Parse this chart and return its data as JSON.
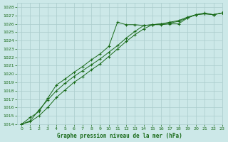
{
  "title": "Graphe pression niveau de la mer (hPa)",
  "bg_color": "#cce8e8",
  "grid_color": "#aacccc",
  "line_color": "#1a6b1a",
  "xlim": [
    -0.5,
    23
  ],
  "ylim": [
    1014,
    1028.5
  ],
  "xticks": [
    0,
    1,
    2,
    3,
    4,
    5,
    6,
    7,
    8,
    9,
    10,
    11,
    12,
    13,
    14,
    15,
    16,
    17,
    18,
    19,
    20,
    21,
    22,
    23
  ],
  "yticks": [
    1014,
    1015,
    1016,
    1017,
    1018,
    1019,
    1020,
    1021,
    1022,
    1023,
    1024,
    1025,
    1026,
    1027,
    1028
  ],
  "series1_x": [
    0,
    1,
    2,
    3,
    4,
    5,
    6,
    7,
    8,
    9,
    10,
    11,
    12,
    13,
    14,
    15,
    16,
    17,
    18,
    19,
    20,
    21,
    22,
    23
  ],
  "series1_y": [
    1014.0,
    1014.8,
    1015.5,
    1017.1,
    1018.7,
    1019.4,
    1020.2,
    1020.9,
    1021.7,
    1022.4,
    1023.3,
    1026.2,
    1025.9,
    1025.9,
    1025.8,
    1025.9,
    1025.9,
    1026.0,
    1026.0,
    1026.7,
    1027.1,
    1027.3,
    1027.1,
    1027.3
  ],
  "series2_x": [
    0,
    1,
    2,
    3,
    4,
    5,
    6,
    7,
    8,
    9,
    10,
    11,
    12,
    13,
    14,
    15,
    16,
    17,
    18,
    19,
    20,
    21,
    22,
    23
  ],
  "series2_y": [
    1014.0,
    1014.4,
    1015.7,
    1016.9,
    1018.0,
    1018.9,
    1019.7,
    1020.4,
    1021.1,
    1021.8,
    1022.6,
    1023.4,
    1024.3,
    1025.1,
    1025.8,
    1025.9,
    1026.0,
    1026.1,
    1026.3,
    1026.7,
    1027.1,
    1027.2,
    1027.1,
    1027.3
  ],
  "series3_x": [
    0,
    1,
    2,
    3,
    4,
    5,
    6,
    7,
    8,
    9,
    10,
    11,
    12,
    13,
    14,
    15,
    16,
    17,
    18,
    19,
    20,
    21,
    22,
    23
  ],
  "series3_y": [
    1014.0,
    1014.3,
    1015.0,
    1016.0,
    1017.2,
    1018.1,
    1019.0,
    1019.7,
    1020.5,
    1021.2,
    1022.1,
    1023.0,
    1023.9,
    1024.7,
    1025.4,
    1025.9,
    1026.0,
    1026.2,
    1026.4,
    1026.8,
    1027.1,
    1027.2,
    1027.1,
    1027.3
  ]
}
